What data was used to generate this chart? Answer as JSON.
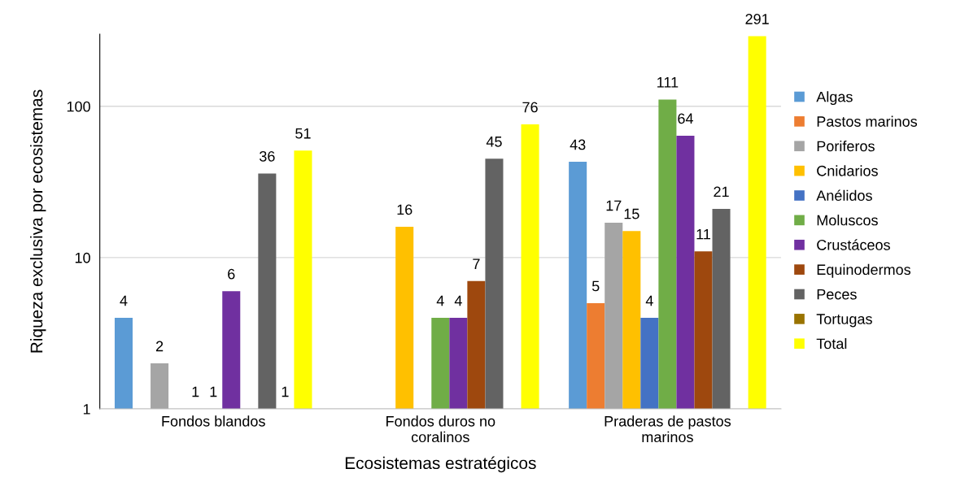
{
  "chart_data": {
    "type": "bar",
    "xlabel": "Ecosistemas estratégicos",
    "ylabel": "Riqueza exclusiva por ecosistemas",
    "categories": [
      "Fondos blandos",
      "Fondos duros no\ncoralinos",
      "Praderas de pastos\nmarinos"
    ],
    "series": [
      {
        "name": "Algas",
        "color": "#5b9bd5",
        "values": [
          4,
          null,
          43
        ]
      },
      {
        "name": "Pastos marinos",
        "color": "#ed7d31",
        "values": [
          null,
          null,
          5
        ]
      },
      {
        "name": "Poriferos",
        "color": "#a5a5a5",
        "values": [
          2,
          null,
          17
        ]
      },
      {
        "name": "Cnidarios",
        "color": "#ffc000",
        "values": [
          null,
          16,
          15
        ]
      },
      {
        "name": "Anélidos",
        "color": "#4472c4",
        "values": [
          1,
          null,
          4
        ]
      },
      {
        "name": "Moluscos",
        "color": "#70ad47",
        "values": [
          1,
          4,
          111
        ]
      },
      {
        "name": "Crustáceos",
        "color": "#7030a0",
        "values": [
          6,
          4,
          64
        ]
      },
      {
        "name": "Equinodermos",
        "color": "#9e480e",
        "values": [
          null,
          7,
          11
        ]
      },
      {
        "name": "Peces",
        "color": "#636363",
        "values": [
          36,
          45,
          21
        ]
      },
      {
        "name": "Tortugas",
        "color": "#997300",
        "values": [
          1,
          null,
          null
        ]
      },
      {
        "name": "Total",
        "color": "#ffff00",
        "values": [
          51,
          76,
          291
        ]
      }
    ],
    "log": true,
    "ylim": [
      1,
      300
    ],
    "yticks": [
      1,
      10,
      100
    ],
    "grid": "y",
    "legend": "right",
    "data_labels": true
  }
}
